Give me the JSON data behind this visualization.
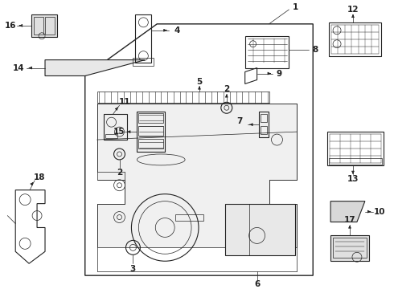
{
  "bg_color": "#ffffff",
  "line_color": "#222222",
  "fig_width": 4.9,
  "fig_height": 3.6,
  "dpi": 100,
  "lw_main": 1.0,
  "lw_part": 0.8,
  "lw_thin": 0.5,
  "lw_arrow": 0.6,
  "label_fs": 7.5
}
